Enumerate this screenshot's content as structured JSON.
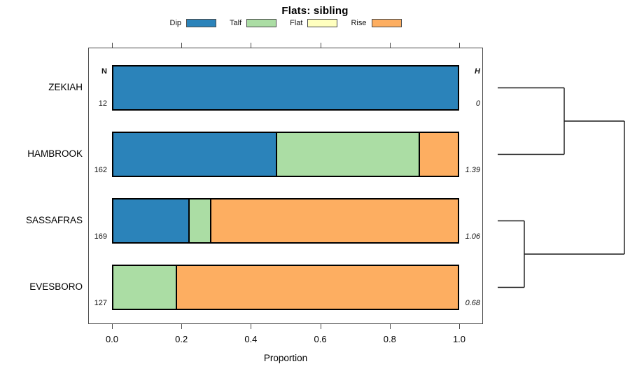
{
  "title": "Flats: sibling",
  "legend": [
    {
      "label": "Dip",
      "color": "#2B83BA"
    },
    {
      "label": "Talf",
      "color": "#ABDDA4"
    },
    {
      "label": "Flat",
      "color": "#FFFFBF"
    },
    {
      "label": "Rise",
      "color": "#FDAE61"
    }
  ],
  "columns": {
    "n_header": "N",
    "h_header": "H"
  },
  "chart_data": {
    "type": "bar",
    "variant": "horizontal-stacked-proportion with dendrogram",
    "title": "Flats: sibling",
    "xlabel": "Proportion",
    "xlim": [
      0,
      1
    ],
    "x_tick_values": [
      0,
      0.2,
      0.4,
      0.6,
      0.8,
      1.0
    ],
    "x_tick_labels": [
      "0.0",
      "0.2",
      "0.4",
      "0.6",
      "0.8",
      "1.0"
    ],
    "series_order": [
      "Dip",
      "Talf",
      "Flat",
      "Rise"
    ],
    "colors": {
      "Dip": "#2B83BA",
      "Talf": "#ABDDA4",
      "Flat": "#FFFFBF",
      "Rise": "#FDAE61"
    },
    "rows": [
      {
        "label": "ZEKIAH",
        "n": 12,
        "h": "0",
        "proportions": {
          "Dip": 1.0,
          "Talf": 0,
          "Flat": 0,
          "Rise": 0
        }
      },
      {
        "label": "HAMBROOK",
        "n": 162,
        "h": "1.39",
        "proportions": {
          "Dip": 0.475,
          "Talf": 0.414,
          "Flat": 0,
          "Rise": 0.111
        }
      },
      {
        "label": "SASSAFRAS",
        "n": 169,
        "h": "1.06",
        "proportions": {
          "Dip": 0.219,
          "Talf": 0.059,
          "Flat": 0,
          "Rise": 0.722
        }
      },
      {
        "label": "EVESBORO",
        "n": 127,
        "h": "0.68",
        "proportions": {
          "Dip": 0,
          "Talf": 0.181,
          "Flat": 0,
          "Rise": 0.819
        }
      }
    ],
    "dendrogram": {
      "leaves": [
        "ZEKIAH",
        "HAMBROOK",
        "SASSAFRAS",
        "EVESBORO"
      ],
      "merges": [
        {
          "left": "L0",
          "right": "L1",
          "rel_height": 0.525
        },
        {
          "left": "L2",
          "right": "L3",
          "rel_height": 0.21
        },
        {
          "left": "M0",
          "right": "M1",
          "rel_height": 1.0
        }
      ],
      "legend_position": "top",
      "grid": false
    }
  }
}
